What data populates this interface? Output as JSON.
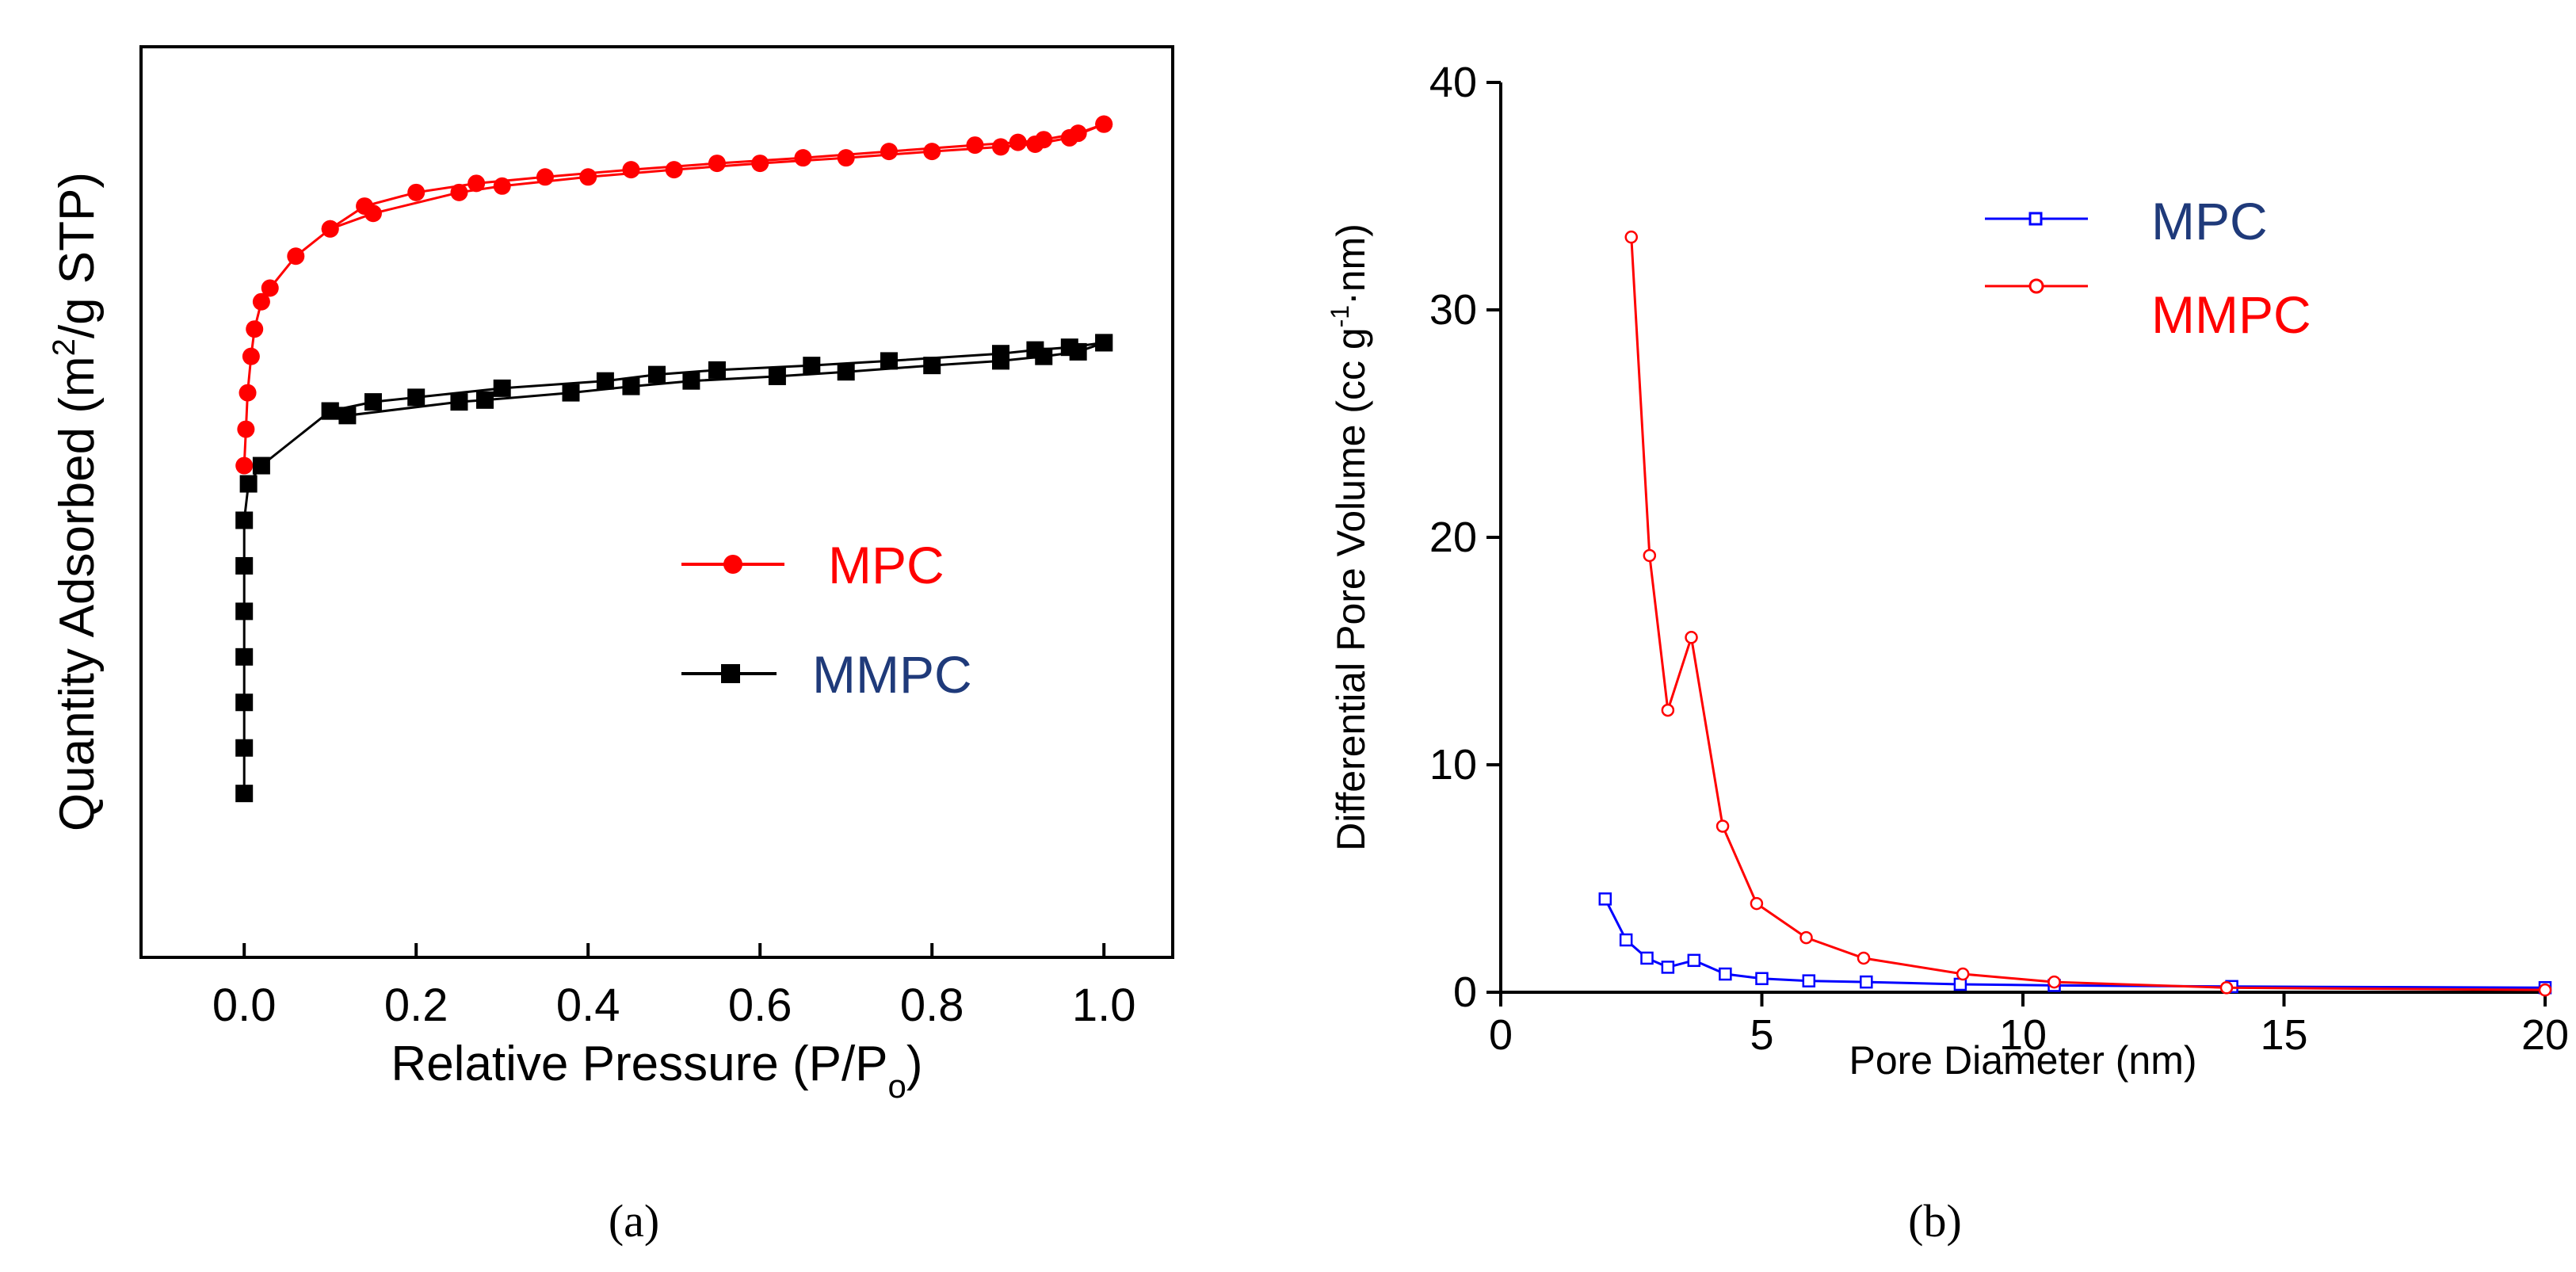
{
  "chart_data": [
    {
      "type": "line",
      "panel": "a",
      "caption": "(a)",
      "title": "",
      "xlabel": "Relative Pressure (P/P",
      "xlabel_subscript": "o",
      "xlabel_close": ")",
      "ylabel_before": "Quantity Adsorbed (m",
      "ylabel_sup": "2",
      "ylabel_after": "/g STP)",
      "xlim": [
        -0.12,
        1.08
      ],
      "ylim": [
        0,
        1
      ],
      "y_tick_labels": false,
      "xticks": [
        0.0,
        0.2,
        0.4,
        0.6,
        0.8,
        1.0
      ],
      "xtick_labels": [
        "0.0",
        "0.2",
        "0.4",
        "0.6",
        "0.8",
        "1.0"
      ],
      "legend_position": "center-right",
      "series": [
        {
          "name": "MPC",
          "color": "#ff0000",
          "label_color": "#ff0000",
          "marker": "circle",
          "adsorption": [
            [
              0.0,
              0.54
            ],
            [
              0.002,
              0.58
            ],
            [
              0.004,
              0.62
            ],
            [
              0.008,
              0.66
            ],
            [
              0.012,
              0.69
            ],
            [
              0.02,
              0.72
            ],
            [
              0.03,
              0.735
            ],
            [
              0.06,
              0.77
            ],
            [
              0.1,
              0.8
            ],
            [
              0.15,
              0.817
            ],
            [
              0.25,
              0.84
            ],
            [
              0.3,
              0.847
            ],
            [
              0.4,
              0.857
            ],
            [
              0.5,
              0.865
            ],
            [
              0.6,
              0.872
            ],
            [
              0.7,
              0.878
            ],
            [
              0.8,
              0.885
            ],
            [
              0.88,
              0.89
            ],
            [
              0.92,
              0.893
            ],
            [
              0.96,
              0.9
            ],
            [
              1.0,
              0.915
            ]
          ],
          "desorption": [
            [
              1.0,
              0.915
            ],
            [
              0.97,
              0.905
            ],
            [
              0.93,
              0.898
            ],
            [
              0.9,
              0.895
            ],
            [
              0.85,
              0.892
            ],
            [
              0.75,
              0.885
            ],
            [
              0.65,
              0.878
            ],
            [
              0.55,
              0.872
            ],
            [
              0.45,
              0.865
            ],
            [
              0.35,
              0.857
            ],
            [
              0.27,
              0.85
            ],
            [
              0.2,
              0.84
            ],
            [
              0.14,
              0.825
            ],
            [
              0.1,
              0.8
            ]
          ]
        },
        {
          "name": "MMPC",
          "color": "#000000",
          "label_color": "#1f3a7a",
          "marker": "square",
          "adsorption": [
            [
              0.0,
              0.18
            ],
            [
              0.0,
              0.23
            ],
            [
              0.0,
              0.28
            ],
            [
              0.0,
              0.33
            ],
            [
              0.0,
              0.38
            ],
            [
              0.0,
              0.43
            ],
            [
              0.0,
              0.48
            ],
            [
              0.005,
              0.52
            ],
            [
              0.02,
              0.54
            ],
            [
              0.1,
              0.6
            ],
            [
              0.12,
              0.595
            ],
            [
              0.25,
              0.61
            ],
            [
              0.28,
              0.612
            ],
            [
              0.38,
              0.62
            ],
            [
              0.45,
              0.627
            ],
            [
              0.52,
              0.633
            ],
            [
              0.62,
              0.638
            ],
            [
              0.7,
              0.643
            ],
            [
              0.8,
              0.65
            ],
            [
              0.88,
              0.655
            ],
            [
              0.93,
              0.66
            ],
            [
              0.97,
              0.665
            ],
            [
              1.0,
              0.675
            ]
          ],
          "desorption": [
            [
              1.0,
              0.675
            ],
            [
              0.96,
              0.67
            ],
            [
              0.92,
              0.667
            ],
            [
              0.88,
              0.663
            ],
            [
              0.75,
              0.655
            ],
            [
              0.66,
              0.65
            ],
            [
              0.55,
              0.645
            ],
            [
              0.48,
              0.64
            ],
            [
              0.42,
              0.633
            ],
            [
              0.3,
              0.625
            ],
            [
              0.2,
              0.615
            ],
            [
              0.15,
              0.61
            ],
            [
              0.1,
              0.6
            ]
          ]
        }
      ]
    },
    {
      "type": "line",
      "panel": "b",
      "caption": "(b)",
      "title": "",
      "xlabel": "Pore Diameter (nm)",
      "ylabel_before": "Differential Pore Volume (cc g",
      "ylabel_sup": "-1",
      "ylabel_after": "·nm)",
      "xlim": [
        0,
        20
      ],
      "ylim": [
        0,
        40
      ],
      "xticks": [
        0,
        5,
        10,
        15,
        20
      ],
      "xtick_labels": [
        "0",
        "5",
        "10",
        "15",
        "20"
      ],
      "yticks": [
        0,
        10,
        20,
        30,
        40
      ],
      "ytick_labels": [
        "0",
        "10",
        "20",
        "30",
        "40"
      ],
      "legend_position": "top-right",
      "series": [
        {
          "name": "MPC",
          "color": "#0000ff",
          "label_color": "#1f3a7a",
          "marker": "open-square",
          "points": [
            [
              2.0,
              4.1
            ],
            [
              2.4,
              2.3
            ],
            [
              2.8,
              1.5
            ],
            [
              3.2,
              1.1
            ],
            [
              3.7,
              1.4
            ],
            [
              4.3,
              0.8
            ],
            [
              5.0,
              0.6
            ],
            [
              5.9,
              0.5
            ],
            [
              7.0,
              0.45
            ],
            [
              8.8,
              0.35
            ],
            [
              10.6,
              0.3
            ],
            [
              14.0,
              0.25
            ],
            [
              20.0,
              0.2
            ]
          ]
        },
        {
          "name": "MMPC",
          "color": "#ff0000",
          "label_color": "#ff0000",
          "marker": "open-circle",
          "points": [
            [
              2.5,
              33.2
            ],
            [
              2.85,
              19.2
            ],
            [
              3.2,
              12.4
            ],
            [
              3.65,
              15.6
            ],
            [
              4.25,
              7.3
            ],
            [
              4.9,
              3.9
            ],
            [
              5.85,
              2.4
            ],
            [
              6.95,
              1.5
            ],
            [
              8.85,
              0.8
            ],
            [
              10.6,
              0.45
            ],
            [
              13.9,
              0.2
            ],
            [
              20.0,
              0.1
            ]
          ]
        }
      ]
    }
  ]
}
